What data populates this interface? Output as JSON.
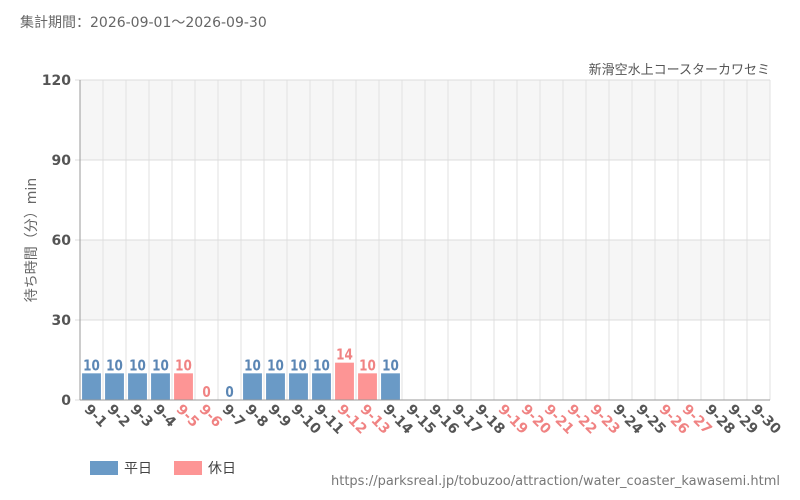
{
  "header": {
    "period": "集計期間：2026-09-01～2026-09-30"
  },
  "chart_data": {
    "type": "bar",
    "title": "新滑空水上コースターカワセミ",
    "ylabel": "待ち時間（分）min",
    "ylim": [
      0,
      120
    ],
    "yticks": [
      0,
      30,
      60,
      90,
      120
    ],
    "grid": true,
    "categories": [
      "9-1",
      "9-2",
      "9-3",
      "9-4",
      "9-5",
      "9-6",
      "9-7",
      "9-8",
      "9-9",
      "9-10",
      "9-11",
      "9-12",
      "9-13",
      "9-14",
      "9-15",
      "9-16",
      "9-17",
      "9-18",
      "9-19",
      "9-20",
      "9-21",
      "9-22",
      "9-23",
      "9-24",
      "9-25",
      "9-26",
      "9-27",
      "9-28",
      "9-29",
      "9-30"
    ],
    "values": [
      10,
      10,
      10,
      10,
      10,
      0,
      0,
      10,
      10,
      10,
      10,
      14,
      10,
      10,
      null,
      null,
      null,
      null,
      null,
      null,
      null,
      null,
      null,
      null,
      null,
      null,
      null,
      null,
      null,
      null
    ],
    "holiday": [
      false,
      false,
      false,
      false,
      true,
      true,
      false,
      false,
      false,
      false,
      false,
      true,
      true,
      false,
      false,
      false,
      false,
      false,
      true,
      true,
      true,
      true,
      true,
      false,
      false,
      true,
      true,
      false,
      false,
      false
    ],
    "legend": [
      {
        "label": "平日",
        "color": "#6a9ac6"
      },
      {
        "label": "休日",
        "color": "#fd9595"
      }
    ],
    "legend_position": "bottom-left",
    "colors": {
      "weekday": "#6a9ac6",
      "holiday": "#fd9595",
      "weekday_text": "#5b86b4",
      "holiday_text": "#f08383"
    }
  },
  "footer": {
    "source": "https://parksreal.jp/tobuzoo/attraction/water_coaster_kawasemi.html"
  }
}
